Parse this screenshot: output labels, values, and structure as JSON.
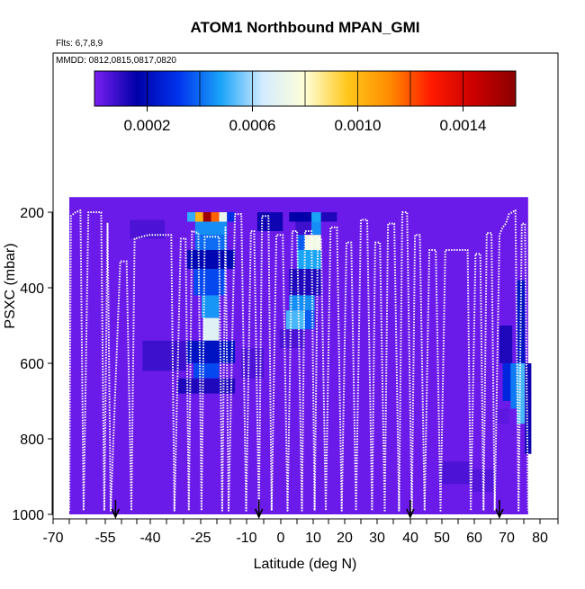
{
  "chart_data": {
    "type": "heatmap",
    "title": "ATOM1 Northbound MPAN_GMI",
    "subtitle_flights": "Flts: 6,7,8,9",
    "subtitle_dates": "MMDD: 0812,0815,0817,0820",
    "xlabel": "Latitude (deg N)",
    "ylabel": "PSXC (mbar)",
    "xlim": [
      -70,
      85
    ],
    "ylim": [
      1000,
      0
    ],
    "x_ticks": [
      -70,
      -55,
      -40,
      -25,
      -10,
      0,
      10,
      20,
      30,
      40,
      50,
      60,
      70,
      80
    ],
    "x_tick_labels": [
      "-70",
      "-55",
      "-40",
      "-25",
      "-10",
      "0",
      "10",
      "20",
      "30",
      "40",
      "50",
      "60",
      "70",
      "80"
    ],
    "y_ticks": [
      200,
      400,
      600,
      800,
      1000
    ],
    "y_tick_labels": [
      "200",
      "400",
      "600",
      "800",
      "1000"
    ],
    "colorbar": {
      "range": [
        0,
        0.0016
      ],
      "ticks": [
        0.0002,
        0.0006,
        0.001,
        0.0014
      ],
      "tick_labels": [
        "0.0002",
        "0.0006",
        "0.0010",
        "0.0014"
      ],
      "colors": [
        "#7a1ff2",
        "#0000a8",
        "#0033ee",
        "#1aa4f8",
        "#d4ecff",
        "#ffffd8",
        "#ffc81c",
        "#ff8c00",
        "#ff1a00",
        "#cc0000",
        "#8b0000"
      ]
    },
    "background_value": 2e-05,
    "domain": {
      "x": [
        -68,
        76
      ],
      "y": [
        160,
        1000
      ]
    },
    "cells": [
      {
        "x0": -26,
        "x1": -23.5,
        "y0": 200,
        "y1": 225,
        "v": 0.00155
      },
      {
        "x0": -23.5,
        "x1": -21,
        "y0": 200,
        "y1": 225,
        "v": 0.00118
      },
      {
        "x0": -28.5,
        "x1": -26,
        "y0": 200,
        "y1": 225,
        "v": 0.00102
      },
      {
        "x0": -21,
        "x1": -18.5,
        "y0": 200,
        "y1": 225,
        "v": 0.00072
      },
      {
        "x0": -31,
        "x1": -28.5,
        "y0": 200,
        "y1": 225,
        "v": 0.0005
      },
      {
        "x0": -18.5,
        "x1": -16,
        "y0": 200,
        "y1": 225,
        "v": 0.0003
      },
      {
        "x0": -28.5,
        "x1": -18.5,
        "y0": 225,
        "y1": 260,
        "v": 0.00045
      },
      {
        "x0": -28.5,
        "x1": -18.5,
        "y0": 260,
        "y1": 300,
        "v": 0.0004
      },
      {
        "x0": -31,
        "x1": -16,
        "y0": 300,
        "y1": 350,
        "v": 0.00018
      },
      {
        "x0": -29,
        "x1": -19,
        "y0": 350,
        "y1": 420,
        "v": 0.00035
      },
      {
        "x0": -26.5,
        "x1": -21,
        "y0": 420,
        "y1": 480,
        "v": 0.00046
      },
      {
        "x0": -26,
        "x1": -21,
        "y0": 480,
        "y1": 540,
        "v": 0.00068
      },
      {
        "x0": -31,
        "x1": -16,
        "y0": 540,
        "y1": 600,
        "v": 0.00022
      },
      {
        "x0": -29,
        "x1": -21,
        "y0": 600,
        "y1": 640,
        "v": 0.00035
      },
      {
        "x0": -34,
        "x1": -16,
        "y0": 640,
        "y1": 680,
        "v": 0.00012
      },
      {
        "x0": -45,
        "x1": -31,
        "y0": 540,
        "y1": 620,
        "v": 8e-05
      },
      {
        "x0": -49,
        "x1": -38,
        "y0": 220,
        "y1": 270,
        "v": 6e-05
      },
      {
        "x0": -14,
        "x1": -7,
        "y0": 560,
        "y1": 640,
        "v": 6e-05
      },
      {
        "x0": -9,
        "x1": -1,
        "y0": 200,
        "y1": 250,
        "v": 0.00014
      },
      {
        "x0": 1,
        "x1": 9,
        "y0": 200,
        "y1": 225,
        "v": 0.00016
      },
      {
        "x0": 8,
        "x1": 11,
        "y0": 200,
        "y1": 225,
        "v": 0.00048
      },
      {
        "x0": 11,
        "x1": 16,
        "y0": 200,
        "y1": 225,
        "v": 0.00012
      },
      {
        "x0": 3,
        "x1": 8,
        "y0": 225,
        "y1": 260,
        "v": 8e-05
      },
      {
        "x0": 8,
        "x1": 11,
        "y0": 225,
        "y1": 260,
        "v": 0.00045
      },
      {
        "x0": 6,
        "x1": 11,
        "y0": 260,
        "y1": 300,
        "v": 0.00075
      },
      {
        "x0": 3.5,
        "x1": 6,
        "y0": 260,
        "y1": 300,
        "v": 0.00038
      },
      {
        "x0": 3.5,
        "x1": 11,
        "y0": 300,
        "y1": 350,
        "v": 0.00048
      },
      {
        "x0": 1,
        "x1": 11,
        "y0": 350,
        "y1": 420,
        "v": 0.00012
      },
      {
        "x0": 1,
        "x1": 9,
        "y0": 420,
        "y1": 460,
        "v": 0.00045
      },
      {
        "x0": 0,
        "x1": 6,
        "y0": 460,
        "y1": 510,
        "v": 0.00052
      },
      {
        "x0": 6,
        "x1": 9,
        "y0": 460,
        "y1": 510,
        "v": 0.00038
      },
      {
        "x0": -2,
        "x1": 6,
        "y0": 510,
        "y1": 560,
        "v": 6e-05
      },
      {
        "x0": 48,
        "x1": 58,
        "y0": 860,
        "y1": 920,
        "v": 6e-05
      },
      {
        "x0": 58,
        "x1": 66,
        "y0": 880,
        "y1": 940,
        "v": 5e-05
      },
      {
        "x0": 67,
        "x1": 71,
        "y0": 500,
        "y1": 600,
        "v": 0.00012
      },
      {
        "x0": 68,
        "x1": 72,
        "y0": 600,
        "y1": 700,
        "v": 0.00028
      },
      {
        "x0": 70.5,
        "x1": 72.5,
        "y0": 600,
        "y1": 720,
        "v": 0.00042
      },
      {
        "x0": 72.5,
        "x1": 75,
        "y0": 380,
        "y1": 600,
        "v": 0.00022
      },
      {
        "x0": 72.5,
        "x1": 75,
        "y0": 600,
        "y1": 760,
        "v": 0.00052
      },
      {
        "x0": 75,
        "x1": 77,
        "y0": 600,
        "y1": 840,
        "v": 0.00014
      },
      {
        "x0": 66,
        "x1": 70,
        "y0": 720,
        "y1": 760,
        "v": 4e-05
      }
    ],
    "flight_track": [
      [
        -68,
        990
      ],
      [
        -67.5,
        210
      ],
      [
        -66,
        200
      ],
      [
        -64.5,
        195
      ],
      [
        -63.5,
        990
      ],
      [
        -62,
        200
      ],
      [
        -58,
        200
      ],
      [
        -57,
        990
      ],
      [
        -56,
        230
      ],
      [
        -55,
        990
      ],
      [
        -52,
        330
      ],
      [
        -50,
        330
      ],
      [
        -48.5,
        990
      ],
      [
        -47.5,
        270
      ],
      [
        -43,
        260
      ],
      [
        -36,
        260
      ],
      [
        -35,
        990
      ],
      [
        -33,
        270
      ],
      [
        -31.5,
        270
      ],
      [
        -30.5,
        990
      ],
      [
        -29.5,
        250
      ],
      [
        -27.5,
        255
      ],
      [
        -26.5,
        990
      ],
      [
        -25.5,
        265
      ],
      [
        -21,
        265
      ],
      [
        -20,
        990
      ],
      [
        -19,
        240
      ],
      [
        -18,
        990
      ],
      [
        -16,
        205
      ],
      [
        -14,
        205
      ],
      [
        -12.5,
        990
      ],
      [
        -11,
        250
      ],
      [
        -10,
        250
      ],
      [
        -8.5,
        990
      ],
      [
        -7.5,
        210
      ],
      [
        -5.5,
        210
      ],
      [
        -4.5,
        990
      ],
      [
        -3,
        260
      ],
      [
        -1,
        260
      ],
      [
        0.5,
        990
      ],
      [
        2,
        250
      ],
      [
        3.5,
        250
      ],
      [
        5,
        990
      ],
      [
        6,
        250
      ],
      [
        8,
        250
      ],
      [
        9,
        990
      ],
      [
        10,
        270
      ],
      [
        11,
        270
      ],
      [
        12.5,
        990
      ],
      [
        14,
        240
      ],
      [
        16,
        240
      ],
      [
        17.5,
        990
      ],
      [
        19,
        280
      ],
      [
        20.5,
        280
      ],
      [
        22,
        990
      ],
      [
        23.5,
        220
      ],
      [
        25.5,
        220
      ],
      [
        27,
        990
      ],
      [
        28,
        280
      ],
      [
        29.5,
        280
      ],
      [
        31,
        990
      ],
      [
        32,
        230
      ],
      [
        34,
        230
      ],
      [
        35.5,
        990
      ],
      [
        36.5,
        200
      ],
      [
        38,
        200
      ],
      [
        39.5,
        990
      ],
      [
        40.5,
        260
      ],
      [
        42,
        260
      ],
      [
        43.5,
        990
      ],
      [
        45,
        300
      ],
      [
        47,
        300
      ],
      [
        48.5,
        990
      ],
      [
        50,
        300
      ],
      [
        57,
        300
      ],
      [
        58,
        990
      ],
      [
        59.5,
        310
      ],
      [
        61,
        310
      ],
      [
        62,
        990
      ],
      [
        63,
        255
      ],
      [
        64.5,
        255
      ],
      [
        65.5,
        990
      ],
      [
        67,
        260
      ],
      [
        68,
        240
      ],
      [
        69,
        230
      ],
      [
        70,
        205
      ],
      [
        71,
        200
      ],
      [
        72,
        195
      ],
      [
        73,
        990
      ],
      [
        74,
        230
      ],
      [
        75,
        230
      ],
      [
        76,
        990
      ]
    ],
    "arrow_markers_x": [
      -53.5,
      -8.5,
      39,
      67
    ]
  }
}
